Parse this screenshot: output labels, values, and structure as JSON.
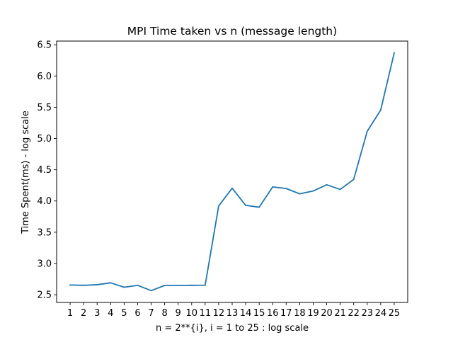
{
  "chart_data": {
    "type": "line",
    "title": "MPI Time taken vs n (message length)",
    "xlabel": "n = 2**{i}, i = 1 to 25 : log scale",
    "ylabel": "Time Spent(ms) - log scale",
    "x": [
      1,
      2,
      3,
      4,
      5,
      6,
      7,
      8,
      9,
      10,
      11,
      12,
      13,
      14,
      15,
      16,
      17,
      18,
      19,
      20,
      21,
      22,
      23,
      24,
      25
    ],
    "x_tick_labels": [
      "1",
      "2",
      "3",
      "4",
      "5",
      "6",
      "7",
      "8",
      "9",
      "10",
      "11",
      "12",
      "13",
      "14",
      "15",
      "16",
      "17",
      "18",
      "19",
      "20",
      "21",
      "22",
      "23",
      "24",
      "25"
    ],
    "series": [
      {
        "values": [
          2.655,
          2.65,
          2.66,
          2.69,
          2.62,
          2.65,
          2.565,
          2.648,
          2.648,
          2.65,
          2.652,
          3.92,
          4.205,
          3.93,
          3.9,
          4.225,
          4.2,
          4.115,
          4.16,
          4.26,
          4.185,
          4.345,
          5.115,
          5.455,
          6.37
        ],
        "color": "#1f77b4"
      }
    ],
    "y_ticks": [
      2.5,
      3.0,
      3.5,
      4.0,
      4.5,
      5.0,
      5.5,
      6.0,
      6.5
    ],
    "y_tick_labels": [
      "2.5",
      "3.0",
      "3.5",
      "4.0",
      "4.5",
      "5.0",
      "5.5",
      "6.0",
      "6.5"
    ],
    "xlim": [
      0.0,
      26.0
    ],
    "ylim": [
      2.376,
      6.559
    ],
    "grid": false,
    "legend": "none"
  }
}
